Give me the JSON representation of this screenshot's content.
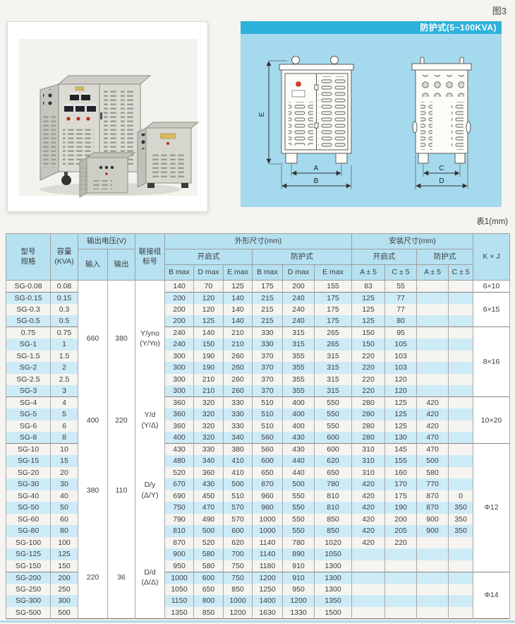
{
  "page": {
    "figure_label": "图3",
    "table_label": "表1(mm)"
  },
  "diagram": {
    "title": "防护式(5~100KVA)",
    "labels": {
      "a": "A",
      "b": "B",
      "c": "C",
      "d": "D",
      "e": "E"
    }
  },
  "table": {
    "headers": {
      "model": "型号\n规格",
      "capacity": "容量\n(KVA)",
      "voltage": "输出电压(V)",
      "input": "输入",
      "output": "输出",
      "connection": "联接组\n标号",
      "outline": "外形尺寸(mm)",
      "mounting": "安装尺寸(mm)",
      "open_type": "开启式",
      "protected_type": "防护式",
      "b_max": "B max",
      "d_max": "D max",
      "e_max": "E max",
      "a_tol": "A ± 5",
      "c_tol": "C ± 5",
      "kxj": "K × J"
    },
    "voltage_groups": [
      {
        "rows": [
          0,
          9
        ],
        "input": "660",
        "output": "380",
        "connection": "Y/yno\n(Y/Yo)"
      },
      {
        "rows": [
          10,
          13
        ],
        "input": "400",
        "output": "220",
        "connection": "Y/d\n(Y/Δ)"
      },
      {
        "rows": [
          14,
          21
        ],
        "input": "380",
        "output": "110",
        "connection": "D/y\n(Δ/Y)"
      },
      {
        "rows": [
          22,
          28
        ],
        "input": "220",
        "output": "36",
        "connection": "D/d\n(Δ/Δ)"
      }
    ],
    "kj_groups": [
      {
        "rows": [
          0,
          0
        ],
        "label": "6×10"
      },
      {
        "rows": [
          1,
          3
        ],
        "label": "6×15"
      },
      {
        "rows": [
          4,
          9
        ],
        "label": "8×16"
      },
      {
        "rows": [
          10,
          13
        ],
        "label": "10×20"
      },
      {
        "rows": [
          14,
          24
        ],
        "label": "Φ12"
      },
      {
        "rows": [
          25,
          28
        ],
        "label": "Φ14"
      }
    ],
    "rows": [
      [
        "SG-0.08",
        "0.08",
        "140",
        "70",
        "125",
        "175",
        "200",
        "155",
        "83",
        "55",
        "",
        ""
      ],
      [
        "SG-0.15",
        "0.15",
        "200",
        "120",
        "140",
        "215",
        "240",
        "175",
        "125",
        "77",
        "",
        ""
      ],
      [
        "SG-0.3",
        "0.3",
        "200",
        "120",
        "140",
        "215",
        "240",
        "175",
        "125",
        "77",
        "",
        ""
      ],
      [
        "SG-0.5",
        "0.5",
        "200",
        "125",
        "140",
        "215",
        "240",
        "175",
        "125",
        "80",
        "",
        ""
      ],
      [
        "0.75",
        "0.75",
        "240",
        "140",
        "210",
        "330",
        "315",
        "265",
        "150",
        "95",
        "",
        ""
      ],
      [
        "SG-1",
        "1",
        "240",
        "150",
        "210",
        "330",
        "315",
        "265",
        "150",
        "105",
        "",
        ""
      ],
      [
        "SG-1.5",
        "1.5",
        "300",
        "190",
        "260",
        "370",
        "355",
        "315",
        "220",
        "103",
        "",
        ""
      ],
      [
        "SG-2",
        "2",
        "300",
        "190",
        "260",
        "370",
        "355",
        "315",
        "220",
        "103",
        "",
        ""
      ],
      [
        "SG-2.5",
        "2.5",
        "300",
        "210",
        "260",
        "370",
        "355",
        "315",
        "220",
        "120",
        "",
        ""
      ],
      [
        "SG-3",
        "3",
        "300",
        "210",
        "260",
        "370",
        "355",
        "315",
        "220",
        "120",
        "",
        ""
      ],
      [
        "SG-4",
        "4",
        "360",
        "320",
        "330",
        "510",
        "400",
        "550",
        "280",
        "125",
        "420",
        ""
      ],
      [
        "SG-5",
        "5",
        "360",
        "320",
        "330",
        "510",
        "400",
        "550",
        "280",
        "125",
        "420",
        ""
      ],
      [
        "SG-6",
        "6",
        "360",
        "320",
        "330",
        "510",
        "400",
        "550",
        "280",
        "125",
        "420",
        ""
      ],
      [
        "SG-8",
        "8",
        "400",
        "320",
        "340",
        "560",
        "430",
        "600",
        "280",
        "130",
        "470",
        ""
      ],
      [
        "SG-10",
        "10",
        "430",
        "330",
        "380",
        "560",
        "430",
        "600",
        "310",
        "145",
        "470",
        ""
      ],
      [
        "SG-15",
        "15",
        "480",
        "340",
        "410",
        "600",
        "440",
        "620",
        "310",
        "155",
        "500",
        ""
      ],
      [
        "SG-20",
        "20",
        "520",
        "360",
        "410",
        "650",
        "440",
        "650",
        "310",
        "160",
        "580",
        ""
      ],
      [
        "SG-30",
        "30",
        "670",
        "430",
        "500",
        "870",
        "500",
        "780",
        "420",
        "170",
        "770",
        ""
      ],
      [
        "SG-40",
        "40",
        "690",
        "450",
        "510",
        "960",
        "550",
        "810",
        "420",
        "175",
        "870",
        "0"
      ],
      [
        "SG-50",
        "50",
        "750",
        "470",
        "570",
        "960",
        "550",
        "810",
        "420",
        "190",
        "870",
        "350"
      ],
      [
        "SG-60",
        "60",
        "790",
        "490",
        "570",
        "1000",
        "550",
        "850",
        "420",
        "200",
        "900",
        "350"
      ],
      [
        "SG-80",
        "80",
        "810",
        "500",
        "600",
        "1000",
        "550",
        "850",
        "420",
        "205",
        "900",
        "350"
      ],
      [
        "SG-100",
        "100",
        "870",
        "520",
        "620",
        "1140",
        "780",
        "1020",
        "420",
        "220",
        "",
        ""
      ],
      [
        "SG-125",
        "125",
        "900",
        "580",
        "700",
        "1140",
        "890",
        "1050",
        "",
        "",
        "",
        ""
      ],
      [
        "SG-150",
        "150",
        "950",
        "580",
        "750",
        "1180",
        "910",
        "1300",
        "",
        "",
        "",
        ""
      ],
      [
        "SG-200",
        "200",
        "1000",
        "600",
        "750",
        "1200",
        "910",
        "1300",
        "",
        "",
        "",
        ""
      ],
      [
        "SG-250",
        "250",
        "1050",
        "650",
        "850",
        "1250",
        "950",
        "1300",
        "",
        "",
        "",
        ""
      ],
      [
        "SG-300",
        "300",
        "1150",
        "800",
        "1000",
        "1400",
        "1200",
        "1350",
        "",
        "",
        "",
        ""
      ],
      [
        "SG-500",
        "500",
        "1350",
        "850",
        "1200",
        "1630",
        "1330",
        "1500",
        "",
        "",
        "",
        ""
      ]
    ]
  }
}
